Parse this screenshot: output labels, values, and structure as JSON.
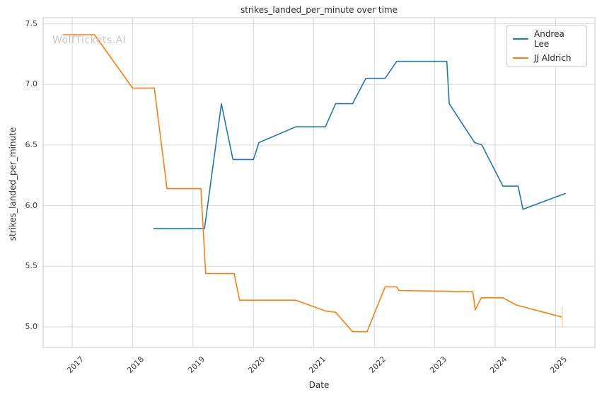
{
  "watermark": "WolfTickets.AI",
  "chart_data": {
    "type": "line",
    "title": "strikes_landed_per_minute over time",
    "xlabel": "Date",
    "ylabel": "strikes_landed_per_minute",
    "x_tick_labels": [
      "2017",
      "2018",
      "2019",
      "2020",
      "2021",
      "2022",
      "2023",
      "2024",
      "2025"
    ],
    "x_tick_values": [
      2017,
      2018,
      2019,
      2020,
      2021,
      2022,
      2023,
      2024,
      2025
    ],
    "y_tick_labels": [
      "5.0",
      "5.5",
      "6.0",
      "6.5",
      "7.0",
      "7.5"
    ],
    "y_tick_values": [
      5.0,
      5.5,
      6.0,
      6.5,
      7.0,
      7.5
    ],
    "xlim": [
      2016.52,
      2025.65
    ],
    "ylim": [
      4.83,
      7.55
    ],
    "grid": true,
    "legend_position": "upper right",
    "colors": {
      "grid": "#d9d9d9",
      "spine": "#c9c9c9",
      "text": "#2b2b2b",
      "watermark": "#c9c9c9",
      "background": "#ffffff"
    },
    "series": [
      {
        "name": "Andrea Lee",
        "color": "#1f77b4",
        "x": [
          2018.35,
          2019.19,
          2019.47,
          2019.66,
          2020.0,
          2020.09,
          2020.7,
          2021.19,
          2021.36,
          2021.64,
          2021.86,
          2022.18,
          2022.37,
          2023.2,
          2023.24,
          2023.66,
          2023.78,
          2024.13,
          2024.38,
          2024.46,
          2025.16
        ],
        "y": [
          5.81,
          5.81,
          6.84,
          6.38,
          6.38,
          6.52,
          6.65,
          6.65,
          6.84,
          6.84,
          7.05,
          7.05,
          7.19,
          7.19,
          6.84,
          6.52,
          6.5,
          6.16,
          6.16,
          5.97,
          6.1
        ]
      },
      {
        "name": "JJ Aldrich",
        "color": "#ff7f0e",
        "x": [
          2016.85,
          2017.37,
          2018.0,
          2018.36,
          2018.57,
          2019.13,
          2019.21,
          2019.68,
          2019.77,
          2020.7,
          2021.2,
          2021.36,
          2021.64,
          2021.88,
          2022.18,
          2022.37,
          2022.41,
          2023.63,
          2023.67,
          2023.77,
          2024.13,
          2024.35,
          2025.11
        ],
        "y": [
          7.41,
          7.41,
          6.97,
          6.97,
          6.14,
          6.14,
          5.44,
          5.44,
          5.22,
          5.22,
          5.13,
          5.12,
          4.96,
          4.96,
          5.33,
          5.33,
          5.3,
          5.29,
          5.14,
          5.24,
          5.24,
          5.18,
          5.08
        ],
        "final_point_error_bar": {
          "x": 2025.11,
          "y_low": 4.99,
          "y_high": 5.17,
          "color": "#ffd2a8"
        }
      }
    ]
  }
}
